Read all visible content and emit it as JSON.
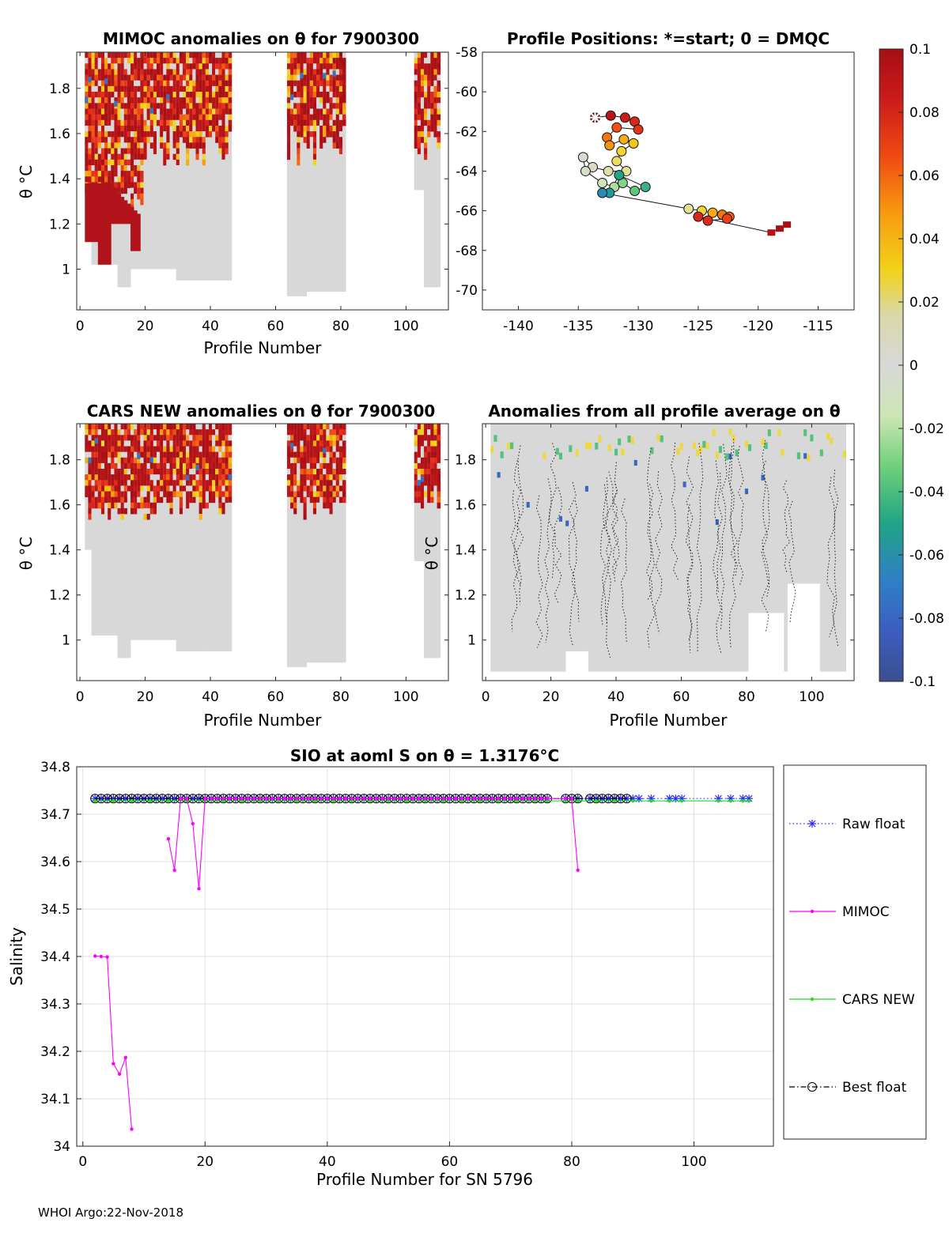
{
  "footer": "WHOI Argo:22-Nov-2018",
  "colorbar": {
    "ticks": [
      "0.1",
      "0.08",
      "0.06",
      "0.04",
      "0.02",
      "0",
      "-0.02",
      "-0.04",
      "-0.06",
      "-0.08",
      "-0.1"
    ]
  },
  "chart_data": [
    {
      "type": "heatmap",
      "title": "MIMOC anomalies on θ  for 7900300",
      "xlabel": "Profile Number",
      "ylabel": "θ °C",
      "xlim": [
        -1,
        113
      ],
      "ylim": [
        0.82,
        1.96
      ],
      "xticks": [
        "0",
        "20",
        "40",
        "60",
        "80",
        "100"
      ],
      "yticks": [
        "1",
        "1.2",
        "1.4",
        "1.6",
        "1.8"
      ],
      "data_blocks": [
        [
          2,
          46
        ],
        [
          64,
          81
        ],
        [
          103,
          110
        ]
      ]
    },
    {
      "type": "scatter",
      "title": "Profile Positions: *=start; 0 = DMQC",
      "xlim": [
        -143,
        -112
      ],
      "ylim": [
        -71,
        -58
      ],
      "xticks": [
        "-140",
        "-135",
        "-130",
        "-125",
        "-120",
        "-115"
      ],
      "yticks": [
        "-58",
        "-60",
        "-62",
        "-64",
        "-66",
        "-68",
        "-70"
      ],
      "x": [
        -133.6,
        -132.3,
        -131.1,
        -130.3,
        -130.0,
        -131.8,
        -132.6,
        -132.4,
        -131.2,
        -130.4,
        -131.4,
        -131.8,
        -131.0,
        -132.5,
        -133.8,
        -134.6,
        -134.4,
        -133.0,
        -132.0,
        -131.3,
        -130.3,
        -129.4,
        -131.6,
        -132.4,
        -133.0,
        -125.8,
        -124.7,
        -123.8,
        -123.0,
        -122.4,
        -122.6,
        -124.2,
        -125.0,
        -118.9,
        -118.2,
        -117.6
      ],
      "y": [
        -61.3,
        -61.2,
        -61.3,
        -61.5,
        -61.9,
        -61.8,
        -62.3,
        -62.7,
        -62.4,
        -62.6,
        -63.0,
        -63.5,
        -64.0,
        -64.0,
        -63.8,
        -63.3,
        -64.0,
        -64.6,
        -64.8,
        -64.6,
        -65.0,
        -64.8,
        -64.2,
        -65.1,
        -65.1,
        -65.9,
        -66.0,
        -66.1,
        -66.2,
        -66.3,
        -66.4,
        -66.5,
        -66.3,
        -67.1,
        -66.9,
        -66.7
      ],
      "color_values": [
        0.1,
        0.092,
        0.085,
        0.078,
        0.072,
        0.065,
        0.058,
        0.052,
        0.045,
        0.038,
        0.032,
        0.025,
        0.018,
        0.012,
        0.005,
        -0.002,
        -0.01,
        -0.018,
        -0.025,
        -0.032,
        -0.038,
        -0.045,
        -0.05,
        -0.055,
        -0.06,
        0.018,
        0.032,
        0.045,
        0.058,
        0.062,
        0.068,
        0.075,
        0.078,
        0.095,
        0.098,
        0.1
      ],
      "start_marker": [
        -133.6,
        -61.3
      ]
    },
    {
      "type": "heatmap",
      "title": "CARS NEW anomalies on θ for 7900300",
      "xlabel": "Profile Number",
      "ylabel": "θ °C",
      "xlim": [
        -1,
        113
      ],
      "ylim": [
        0.82,
        1.96
      ],
      "xticks": [
        "0",
        "20",
        "40",
        "60",
        "80",
        "100"
      ],
      "yticks": [
        "1",
        "1.2",
        "1.4",
        "1.6",
        "1.8"
      ],
      "data_blocks": [
        [
          2,
          46
        ],
        [
          64,
          81
        ],
        [
          103,
          110
        ]
      ]
    },
    {
      "type": "heatmap",
      "title": "Anomalies from all profile average on θ",
      "xlabel": "Profile Number",
      "ylabel": "θ °C",
      "xlim": [
        -1,
        113
      ],
      "ylim": [
        0.82,
        1.96
      ],
      "xticks": [
        "0",
        "20",
        "40",
        "60",
        "80",
        "100"
      ],
      "yticks": [
        "1",
        "1.2",
        "1.4",
        "1.6",
        "1.8"
      ]
    },
    {
      "type": "line",
      "title": "SIO at aoml S on θ = 1.3176°C",
      "xlabel": "Profile Number for SN 5796",
      "ylabel": "Salinity",
      "xlim": [
        -1,
        113
      ],
      "ylim": [
        34.0,
        34.8
      ],
      "xticks": [
        "0",
        "20",
        "40",
        "60",
        "80",
        "100"
      ],
      "yticks": [
        "34",
        "34.1",
        "34.2",
        "34.3",
        "34.4",
        "34.5",
        "34.6",
        "34.7",
        "34.8"
      ],
      "grid": true,
      "legend_position": "right",
      "series": [
        {
          "name": "Raw float",
          "color": "#2b2bff",
          "style": "dotted-star",
          "x": [
            2,
            3,
            4,
            5,
            6,
            7,
            8,
            9,
            10,
            11,
            12,
            13,
            14,
            15,
            16,
            17,
            18,
            19,
            20,
            21,
            22,
            23,
            24,
            25,
            26,
            27,
            28,
            29,
            30,
            31,
            32,
            33,
            34,
            35,
            36,
            37,
            38,
            39,
            40,
            41,
            42,
            43,
            44,
            45,
            46,
            47,
            48,
            49,
            50,
            51,
            52,
            53,
            54,
            55,
            56,
            57,
            58,
            59,
            60,
            61,
            62,
            63,
            64,
            65,
            66,
            67,
            68,
            69,
            70,
            71,
            72,
            73,
            74,
            75,
            76,
            79,
            80,
            81,
            83,
            84,
            85,
            86,
            87,
            88,
            89,
            90,
            91,
            93,
            96,
            97,
            98,
            104,
            106,
            108,
            109
          ],
          "values": [
            34.733,
            34.733,
            34.733,
            34.733,
            34.733,
            34.733,
            34.733,
            34.733,
            34.733,
            34.733,
            34.733,
            34.733,
            34.733,
            34.733,
            34.733,
            34.733,
            34.733,
            34.733,
            34.733,
            34.733,
            34.733,
            34.733,
            34.733,
            34.733,
            34.733,
            34.733,
            34.733,
            34.733,
            34.733,
            34.733,
            34.733,
            34.733,
            34.733,
            34.733,
            34.733,
            34.733,
            34.733,
            34.733,
            34.733,
            34.733,
            34.733,
            34.733,
            34.733,
            34.733,
            34.733,
            34.733,
            34.733,
            34.733,
            34.733,
            34.733,
            34.733,
            34.733,
            34.733,
            34.733,
            34.733,
            34.733,
            34.733,
            34.733,
            34.733,
            34.733,
            34.733,
            34.733,
            34.733,
            34.733,
            34.733,
            34.733,
            34.733,
            34.733,
            34.733,
            34.733,
            34.733,
            34.733,
            34.733,
            34.733,
            34.733,
            34.733,
            34.733,
            34.733,
            34.733,
            34.733,
            34.733,
            34.733,
            34.733,
            34.733,
            34.733,
            34.733,
            34.733,
            34.733,
            34.733,
            34.733,
            34.733,
            34.733,
            34.733,
            34.733,
            34.733
          ]
        },
        {
          "name": "MIMOC",
          "color": "#ff00ff",
          "style": "solid-dot",
          "x": [
            2,
            3,
            4,
            5,
            6,
            7,
            8,
            null,
            14,
            15,
            16,
            17,
            18,
            19,
            20,
            21,
            22,
            23,
            24,
            25,
            26,
            27,
            28,
            29,
            30,
            31,
            32,
            33,
            34,
            35,
            36,
            37,
            38,
            39,
            40,
            41,
            42,
            43,
            44,
            45,
            46,
            47,
            48,
            49,
            50,
            51,
            52,
            53,
            54,
            55,
            56,
            57,
            58,
            59,
            60,
            61,
            62,
            63,
            64,
            65,
            66,
            67,
            68,
            69,
            70,
            71,
            72,
            73,
            74,
            75,
            76,
            79,
            80,
            81
          ],
          "values": [
            34.401,
            34.4,
            34.399,
            34.174,
            34.152,
            34.187,
            34.036,
            null,
            34.648,
            34.582,
            34.733,
            34.733,
            34.68,
            34.543,
            34.733,
            34.733,
            34.733,
            34.733,
            34.733,
            34.733,
            34.733,
            34.733,
            34.733,
            34.733,
            34.733,
            34.733,
            34.733,
            34.733,
            34.733,
            34.733,
            34.733,
            34.733,
            34.733,
            34.733,
            34.733,
            34.733,
            34.733,
            34.733,
            34.733,
            34.733,
            34.733,
            34.733,
            34.733,
            34.733,
            34.733,
            34.733,
            34.733,
            34.733,
            34.733,
            34.733,
            34.733,
            34.733,
            34.733,
            34.733,
            34.733,
            34.733,
            34.733,
            34.733,
            34.733,
            34.733,
            34.733,
            34.733,
            34.733,
            34.733,
            34.733,
            34.733,
            34.733,
            34.733,
            34.733,
            34.733,
            34.733,
            34.733,
            34.733,
            34.582
          ]
        },
        {
          "name": "CARS NEW",
          "color": "#22dd22",
          "style": "solid-dot",
          "x": [
            2,
            5,
            8,
            11,
            14,
            17,
            20,
            23,
            26,
            29,
            32,
            35,
            38,
            41,
            44,
            47,
            50,
            53,
            56,
            59,
            62,
            65,
            68,
            71,
            74,
            76,
            79,
            81,
            84,
            87,
            90,
            93,
            96,
            98,
            104,
            106,
            108,
            109
          ],
          "values": [
            34.728,
            34.728,
            34.728,
            34.728,
            34.728,
            34.728,
            34.728,
            34.728,
            34.728,
            34.728,
            34.728,
            34.728,
            34.728,
            34.728,
            34.728,
            34.728,
            34.728,
            34.728,
            34.728,
            34.728,
            34.728,
            34.728,
            34.728,
            34.728,
            34.728,
            34.728,
            34.728,
            34.728,
            34.728,
            34.728,
            34.728,
            34.728,
            34.728,
            34.728,
            34.728,
            34.728,
            34.728,
            34.728
          ]
        },
        {
          "name": "Best float",
          "color": "#000000",
          "style": "dashdot-circle",
          "x": [
            2,
            3,
            4,
            5,
            6,
            7,
            8,
            9,
            10,
            11,
            12,
            13,
            14,
            15,
            16,
            17,
            18,
            19,
            20,
            21,
            22,
            23,
            24,
            25,
            26,
            27,
            28,
            29,
            30,
            31,
            32,
            33,
            34,
            35,
            36,
            37,
            38,
            39,
            40,
            41,
            42,
            43,
            44,
            45,
            46,
            47,
            48,
            49,
            50,
            51,
            52,
            53,
            54,
            55,
            56,
            57,
            58,
            59,
            60,
            61,
            62,
            63,
            64,
            65,
            66,
            67,
            68,
            69,
            70,
            71,
            72,
            73,
            74,
            75,
            76,
            79,
            80,
            81,
            83,
            84,
            85,
            86,
            87,
            88,
            89
          ],
          "values": [
            34.733,
            34.733,
            34.733,
            34.733,
            34.733,
            34.733,
            34.733,
            34.733,
            34.733,
            34.733,
            34.733,
            34.733,
            34.733,
            34.733,
            34.733,
            34.733,
            34.733,
            34.733,
            34.733,
            34.733,
            34.733,
            34.733,
            34.733,
            34.733,
            34.733,
            34.733,
            34.733,
            34.733,
            34.733,
            34.733,
            34.733,
            34.733,
            34.733,
            34.733,
            34.733,
            34.733,
            34.733,
            34.733,
            34.733,
            34.733,
            34.733,
            34.733,
            34.733,
            34.733,
            34.733,
            34.733,
            34.733,
            34.733,
            34.733,
            34.733,
            34.733,
            34.733,
            34.733,
            34.733,
            34.733,
            34.733,
            34.733,
            34.733,
            34.733,
            34.733,
            34.733,
            34.733,
            34.733,
            34.733,
            34.733,
            34.733,
            34.733,
            34.733,
            34.733,
            34.733,
            34.733,
            34.733,
            34.733,
            34.733,
            34.733,
            34.733,
            34.733,
            34.733,
            34.733,
            34.733,
            34.733,
            34.733,
            34.733,
            34.733,
            34.733
          ]
        }
      ]
    }
  ]
}
